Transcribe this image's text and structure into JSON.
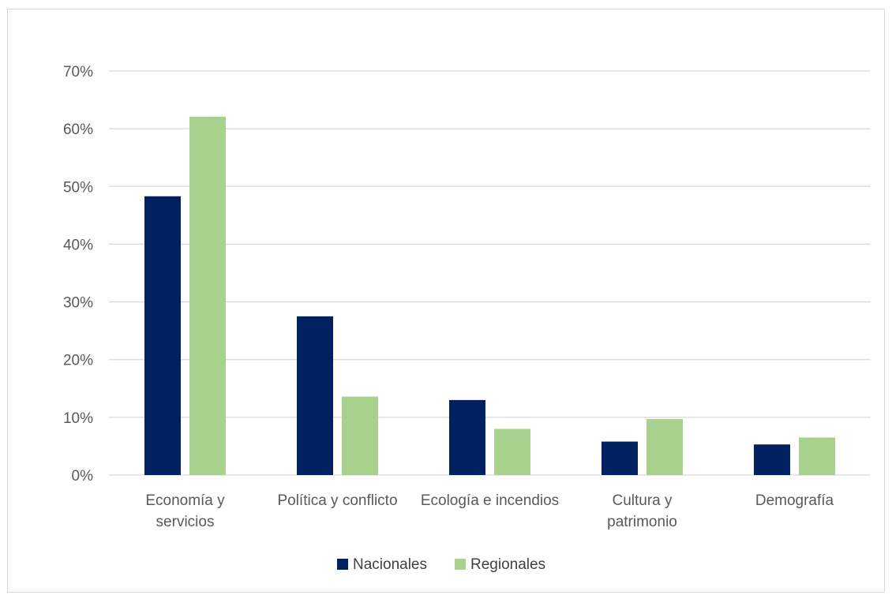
{
  "chart_data": {
    "type": "bar",
    "categories": [
      [
        "Economía y",
        "servicios"
      ],
      [
        "Política y conflicto"
      ],
      [
        "Ecología e incendios"
      ],
      [
        "Cultura y",
        "patrimonio"
      ],
      [
        "Demografía"
      ]
    ],
    "series": [
      {
        "name": "Nacionales",
        "color": "#002060",
        "values": [
          48.3,
          27.5,
          13.0,
          5.8,
          5.3
        ]
      },
      {
        "name": "Regionales",
        "color": "#a9d18e",
        "values": [
          62.1,
          13.6,
          8.0,
          9.7,
          6.5
        ]
      }
    ],
    "yticks": [
      "0%",
      "10%",
      "20%",
      "30%",
      "40%",
      "50%",
      "60%",
      "70%"
    ],
    "ylim": [
      0,
      70
    ],
    "grid": true,
    "gridColor": "#d9d9d9",
    "legend": "bottom"
  }
}
